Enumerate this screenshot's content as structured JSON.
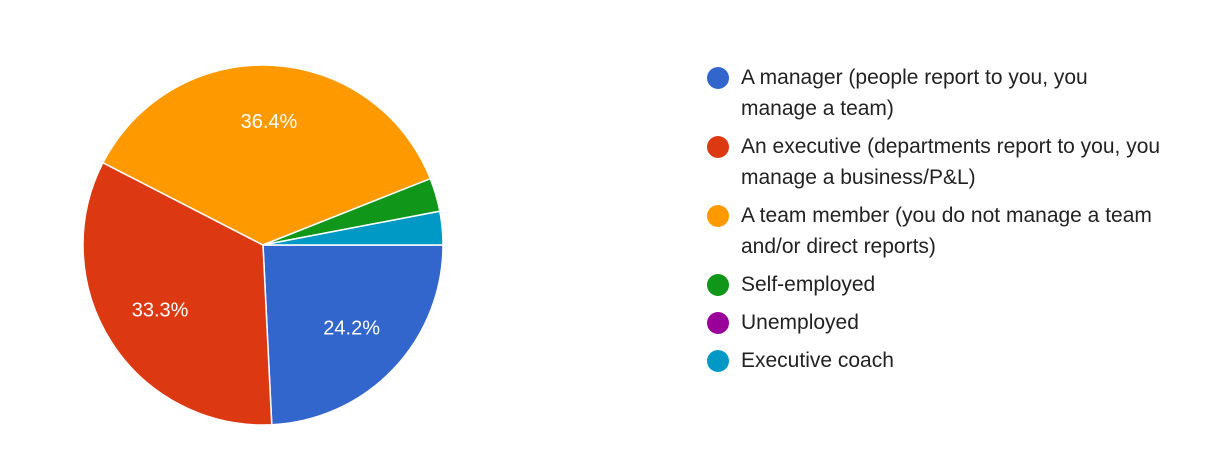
{
  "chart_data": {
    "type": "pie",
    "categories": [
      "A manager (people report to you, you manage a team)",
      "An executive (departments report to you, you manage a business/P&L)",
      "A team member (you do not manage a team and/or direct reports)",
      "Self-employed",
      "Unemployed",
      "Executive coach"
    ],
    "values": [
      24.2,
      33.3,
      36.4,
      3.0,
      0,
      3.0
    ],
    "value_labels": [
      "24.2%",
      "33.3%",
      "36.4%",
      null,
      null,
      null
    ],
    "colors": [
      "#3366cc",
      "#dc3912",
      "#ff9900",
      "#109618",
      "#990099",
      "#0099c6"
    ],
    "legend": "right"
  }
}
